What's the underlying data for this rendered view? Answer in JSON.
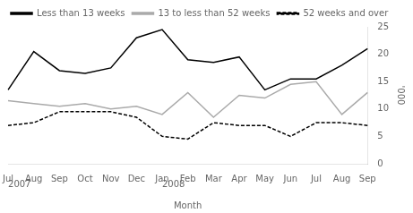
{
  "chart_data": {
    "type": "line",
    "xlabel": "Month",
    "ylabel": "'000",
    "categories": [
      "Jul",
      "Aug",
      "Sep",
      "Oct",
      "Nov",
      "Dec",
      "Jan",
      "Feb",
      "Mar",
      "Apr",
      "May",
      "Jun",
      "Jul",
      "Aug",
      "Sep"
    ],
    "series": [
      {
        "name": "Less than 13 weeks",
        "color": "black",
        "line_style": "solid",
        "values": [
          13.5,
          20.5,
          17.0,
          16.5,
          17.5,
          23.0,
          24.5,
          19.0,
          18.5,
          19.5,
          13.5,
          15.5,
          15.5,
          18.0,
          21.0
        ]
      },
      {
        "name": "13 to less than 52 weeks",
        "color": "#aaaaaa",
        "line_style": "solid",
        "values": [
          11.5,
          11.0,
          10.5,
          11.0,
          10.0,
          10.5,
          9.0,
          13.0,
          8.5,
          12.5,
          12.0,
          14.5,
          15.0,
          9.0,
          13.0
        ]
      },
      {
        "name": "52 weeks and over",
        "color": "black",
        "line_style": "dashed",
        "values": [
          7.0,
          7.5,
          9.5,
          9.5,
          9.5,
          8.5,
          5.0,
          4.5,
          7.5,
          7.0,
          7.0,
          5.0,
          7.5,
          7.5,
          7.0
        ]
      }
    ],
    "annotations": [
      {
        "text": "2007",
        "x": 0
      },
      {
        "text": "2008",
        "x": 6
      }
    ],
    "ylim": [
      0,
      25
    ],
    "yticks": [
      0,
      5,
      10,
      15,
      20,
      25
    ],
    "grid": false,
    "legend": "upper left"
  }
}
